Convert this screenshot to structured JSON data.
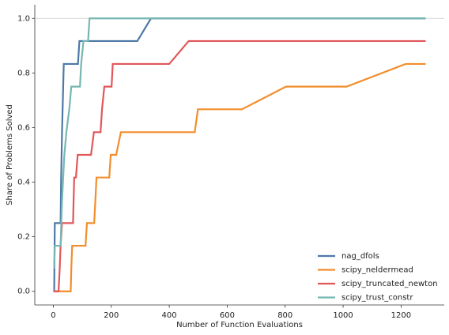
{
  "chart_data": {
    "type": "line",
    "xlabel": "Number of Function Evaluations",
    "ylabel": "Share of Problems Solved",
    "xlim": [
      -64,
      1349
    ],
    "ylim": [
      -0.05,
      1.05
    ],
    "xticks": [
      0,
      200,
      400,
      600,
      800,
      1000,
      1200
    ],
    "yticks": [
      {
        "value": 0,
        "label": "0.0"
      },
      {
        "value": 0.2,
        "label": "0.2"
      },
      {
        "value": 0.4,
        "label": "0.4"
      },
      {
        "value": 0.6,
        "label": "0.6"
      },
      {
        "value": 0.8,
        "label": "0.8"
      },
      {
        "value": 1,
        "label": "1.0"
      }
    ],
    "hline": 1,
    "legend": "lower right",
    "series": [
      {
        "name": "nag_dfols",
        "color": "#4e79a7",
        "x": [
          3,
          5,
          25,
          27,
          30,
          32,
          36,
          85,
          90,
          290,
          337,
          1285
        ],
        "values": [
          0,
          0.25,
          0.25,
          0.417,
          0.583,
          0.667,
          0.833,
          0.833,
          0.917,
          0.917,
          1.0,
          1.0
        ]
      },
      {
        "name": "scipy_neldermead",
        "color": "#f28e2b",
        "x": [
          0,
          60,
          62,
          65,
          111,
          116,
          141,
          145,
          149,
          193,
          198,
          217,
          233,
          488,
          499,
          651,
          803,
          1012,
          1216,
          1285
        ],
        "values": [
          0,
          0,
          0.083,
          0.167,
          0.167,
          0.25,
          0.25,
          0.333,
          0.417,
          0.417,
          0.5,
          0.5,
          0.583,
          0.583,
          0.667,
          0.667,
          0.75,
          0.75,
          0.833,
          0.833
        ]
      },
      {
        "name": "scipy_truncated_newton",
        "color": "#e15759",
        "x": [
          0,
          18,
          22,
          25,
          30,
          68,
          70,
          72,
          78,
          84,
          130,
          140,
          163,
          168,
          176,
          201,
          205,
          400,
          467,
          1285
        ],
        "values": [
          0,
          0,
          0.083,
          0.167,
          0.25,
          0.25,
          0.333,
          0.417,
          0.417,
          0.5,
          0.5,
          0.583,
          0.583,
          0.667,
          0.75,
          0.75,
          0.833,
          0.833,
          0.917,
          0.917
        ]
      },
      {
        "name": "scipy_trust_constr",
        "color": "#76b7b2",
        "x": [
          3,
          5,
          25,
          30,
          38,
          45,
          55,
          62,
          92,
          96,
          104,
          120,
          125,
          1285
        ],
        "values": [
          0.083,
          0.167,
          0.167,
          0.333,
          0.5,
          0.583,
          0.667,
          0.75,
          0.75,
          0.833,
          0.917,
          0.917,
          1.0,
          1.0
        ]
      }
    ]
  }
}
